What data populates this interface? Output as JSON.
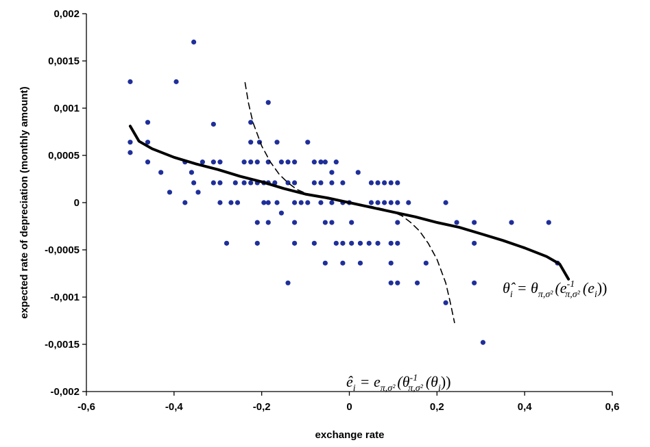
{
  "chart_data": {
    "type": "scatter",
    "xlabel": "exchange rate",
    "ylabel": "expected rate of depreciation (monthly amount)",
    "xlim": [
      -0.6,
      0.6
    ],
    "ylim": [
      -0.002,
      0.002
    ],
    "x_ticks": [
      "-0,6",
      "-0,4",
      "-0,2",
      "0",
      "0,2",
      "0,4",
      "0,6"
    ],
    "y_ticks": [
      "-0,002",
      "-0,0015",
      "-0,001",
      "-0,0005",
      "0",
      "0,0005",
      "0,001",
      "0,0015",
      "0,002"
    ],
    "grid": false,
    "legend": "none",
    "colors": {
      "points": "#1f2f9a",
      "curves": "#000000"
    },
    "series": [
      {
        "kind": "scatter",
        "points": [
          [
            -0.5,
            0.00128
          ],
          [
            -0.5,
            0.00064
          ],
          [
            -0.5,
            0.00053
          ],
          [
            -0.46,
            0.00085
          ],
          [
            -0.46,
            0.00064
          ],
          [
            -0.46,
            0.00043
          ],
          [
            -0.43,
            0.00032
          ],
          [
            -0.41,
            0.00011
          ],
          [
            -0.395,
            0.00128
          ],
          [
            -0.375,
            0.00043
          ],
          [
            -0.375,
            0.0
          ],
          [
            -0.36,
            0.00032
          ],
          [
            -0.355,
            0.0017
          ],
          [
            -0.355,
            0.00021
          ],
          [
            -0.345,
            0.00011
          ],
          [
            -0.335,
            0.00043
          ],
          [
            -0.31,
            0.00083
          ],
          [
            -0.31,
            0.00043
          ],
          [
            -0.31,
            0.00021
          ],
          [
            -0.295,
            0.00043
          ],
          [
            -0.295,
            0.00021
          ],
          [
            -0.295,
            0.0
          ],
          [
            -0.28,
            -0.00043
          ],
          [
            -0.27,
            0.0
          ],
          [
            -0.26,
            0.00021
          ],
          [
            -0.255,
            0.0
          ],
          [
            -0.24,
            0.00043
          ],
          [
            -0.24,
            0.00021
          ],
          [
            -0.225,
            0.00085
          ],
          [
            -0.225,
            0.00064
          ],
          [
            -0.225,
            0.00043
          ],
          [
            -0.225,
            0.00021
          ],
          [
            -0.21,
            0.00043
          ],
          [
            -0.21,
            0.00021
          ],
          [
            -0.21,
            -0.00021
          ],
          [
            -0.21,
            -0.00043
          ],
          [
            -0.205,
            0.00064
          ],
          [
            -0.195,
            0.00021
          ],
          [
            -0.195,
            0.0
          ],
          [
            -0.185,
            0.00106
          ],
          [
            -0.185,
            0.00043
          ],
          [
            -0.185,
            0.00021
          ],
          [
            -0.185,
            0.0
          ],
          [
            -0.185,
            -0.00021
          ],
          [
            -0.17,
            0.00021
          ],
          [
            -0.165,
            0.00064
          ],
          [
            -0.165,
            0.0
          ],
          [
            -0.155,
            0.00043
          ],
          [
            -0.155,
            -0.00011
          ],
          [
            -0.14,
            0.00043
          ],
          [
            -0.14,
            0.00021
          ],
          [
            -0.14,
            -0.00085
          ],
          [
            -0.125,
            0.00043
          ],
          [
            -0.125,
            0.00021
          ],
          [
            -0.125,
            0.0
          ],
          [
            -0.125,
            -0.00021
          ],
          [
            -0.125,
            -0.00043
          ],
          [
            -0.11,
            0.0
          ],
          [
            -0.095,
            0.00064
          ],
          [
            -0.095,
            0.0
          ],
          [
            -0.08,
            0.00043
          ],
          [
            -0.08,
            0.00021
          ],
          [
            -0.08,
            -0.00043
          ],
          [
            -0.065,
            0.00043
          ],
          [
            -0.065,
            0.00021
          ],
          [
            -0.065,
            0.0
          ],
          [
            -0.055,
            0.00043
          ],
          [
            -0.055,
            -0.00021
          ],
          [
            -0.055,
            -0.00064
          ],
          [
            -0.04,
            0.00032
          ],
          [
            -0.04,
            0.00021
          ],
          [
            -0.04,
            0.0
          ],
          [
            -0.04,
            -0.00021
          ],
          [
            -0.03,
            0.00043
          ],
          [
            -0.03,
            -0.00043
          ],
          [
            -0.015,
            0.00021
          ],
          [
            -0.015,
            0.0
          ],
          [
            -0.015,
            -0.00043
          ],
          [
            -0.015,
            -0.00064
          ],
          [
            0.0,
            0.0
          ],
          [
            0.005,
            -0.00021
          ],
          [
            0.005,
            -0.00043
          ],
          [
            0.02,
            0.00032
          ],
          [
            0.025,
            -0.00043
          ],
          [
            0.025,
            -0.00064
          ],
          [
            0.045,
            -0.00043
          ],
          [
            0.05,
            0.00021
          ],
          [
            0.05,
            0.0
          ],
          [
            0.065,
            0.00021
          ],
          [
            0.065,
            0.0
          ],
          [
            0.065,
            -0.00043
          ],
          [
            0.08,
            0.00021
          ],
          [
            0.08,
            0.0
          ],
          [
            0.095,
            0.00021
          ],
          [
            0.095,
            0.0
          ],
          [
            0.095,
            -0.00043
          ],
          [
            0.095,
            -0.00064
          ],
          [
            0.095,
            -0.00085
          ],
          [
            0.11,
            0.00021
          ],
          [
            0.11,
            0.0
          ],
          [
            0.11,
            -0.00021
          ],
          [
            0.11,
            -0.00043
          ],
          [
            0.11,
            -0.00085
          ],
          [
            0.135,
            0.0
          ],
          [
            0.155,
            -0.00085
          ],
          [
            0.175,
            -0.00064
          ],
          [
            0.22,
            0.0
          ],
          [
            0.22,
            -0.00106
          ],
          [
            0.245,
            -0.00021
          ],
          [
            0.285,
            -0.00021
          ],
          [
            0.285,
            -0.00043
          ],
          [
            0.285,
            -0.00085
          ],
          [
            0.305,
            -0.00148
          ],
          [
            0.37,
            -0.00021
          ],
          [
            0.455,
            -0.00021
          ],
          [
            0.475,
            -0.00064
          ]
        ]
      },
      {
        "kind": "curve",
        "style": "solid",
        "points": [
          [
            -0.5,
            0.00081
          ],
          [
            -0.48,
            0.00065
          ],
          [
            -0.45,
            0.00057
          ],
          [
            -0.4,
            0.00048
          ],
          [
            -0.35,
            0.00041
          ],
          [
            -0.3,
            0.00035
          ],
          [
            -0.25,
            0.00028
          ],
          [
            -0.2,
            0.00022
          ],
          [
            -0.15,
            0.00015
          ],
          [
            -0.1,
            9e-05
          ],
          [
            -0.05,
            5e-05
          ],
          [
            0.0,
            0.0
          ],
          [
            0.05,
            -5e-05
          ],
          [
            0.1,
            -0.0001
          ],
          [
            0.15,
            -0.00015
          ],
          [
            0.2,
            -0.00021
          ],
          [
            0.25,
            -0.00026
          ],
          [
            0.3,
            -0.00033
          ],
          [
            0.35,
            -0.0004
          ],
          [
            0.4,
            -0.00048
          ],
          [
            0.45,
            -0.00057
          ],
          [
            0.48,
            -0.00065
          ],
          [
            0.5,
            -0.00081
          ]
        ]
      },
      {
        "kind": "curve",
        "style": "dashed",
        "points": [
          [
            -0.238,
            0.00127
          ],
          [
            -0.23,
            0.00105
          ],
          [
            -0.22,
            0.00085
          ],
          [
            -0.2,
            0.0006
          ],
          [
            -0.18,
            0.00043
          ],
          [
            -0.16,
            0.0003
          ],
          [
            -0.14,
            0.00021
          ],
          [
            -0.12,
            0.00014
          ],
          [
            -0.1,
            0.0001
          ],
          [
            -0.08,
            7e-05
          ],
          [
            -0.05,
            4e-05
          ],
          [
            0.0,
            0.0
          ],
          [
            0.05,
            -4e-05
          ],
          [
            0.08,
            -7e-05
          ],
          [
            0.1,
            -0.0001
          ],
          [
            0.12,
            -0.00014
          ],
          [
            0.14,
            -0.00021
          ],
          [
            0.16,
            -0.0003
          ],
          [
            0.18,
            -0.00043
          ],
          [
            0.2,
            -0.0006
          ],
          [
            0.22,
            -0.00085
          ],
          [
            0.23,
            -0.00105
          ],
          [
            0.24,
            -0.00127
          ]
        ]
      }
    ],
    "annotations": [
      {
        "lhs": "θ̂",
        "sub": "i",
        "rhs": "= θ",
        "rhs_sub": "π,σ²",
        "body": "(e",
        "body_sub": "π,σ²",
        "body_sup": "-1",
        "tail": "(e",
        "tail_sub": "i",
        "end": "))"
      },
      {
        "lhs": "ê",
        "sub": "i",
        "rhs": "= e",
        "rhs_sub": "π,σ²",
        "body": "(θ",
        "body_sub": "π,σ²",
        "body_sup": "-1",
        "tail": "(θ",
        "tail_sub": "i",
        "end": "))"
      }
    ]
  }
}
